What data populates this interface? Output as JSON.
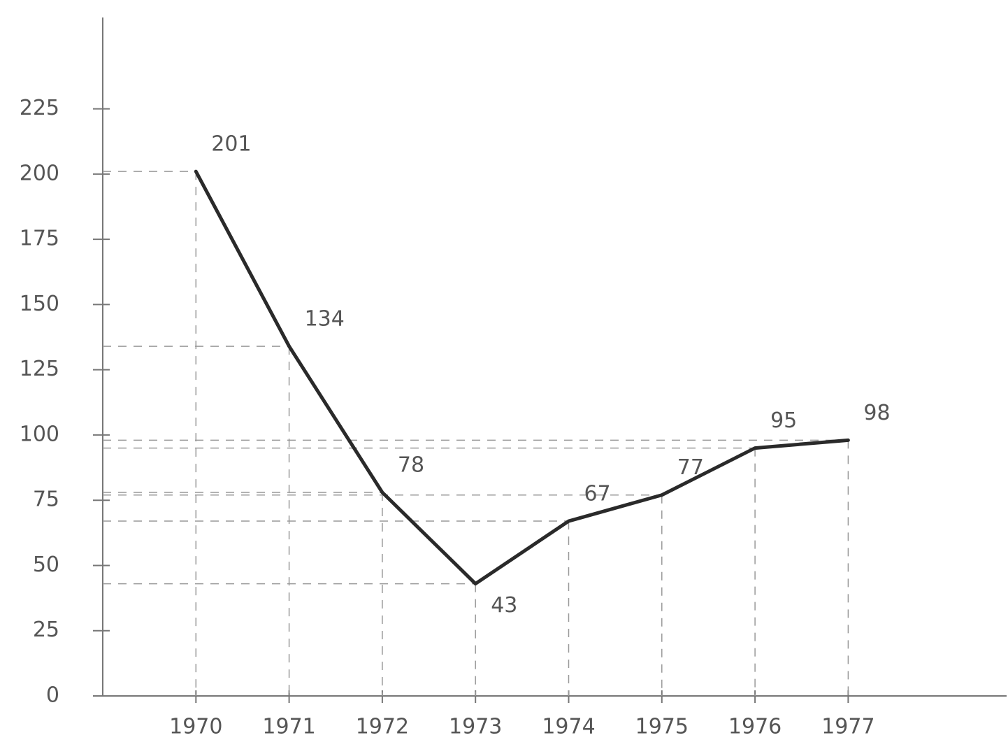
{
  "chart_data": {
    "type": "line",
    "x": [
      1970,
      1971,
      1972,
      1973,
      1974,
      1975,
      1976,
      1977
    ],
    "xlim": [
      1969,
      1978.7
    ],
    "xticks": [
      1970,
      1971,
      1972,
      1973,
      1974,
      1975,
      1976,
      1977
    ],
    "ylim": [
      0,
      260
    ],
    "yticks": [
      0,
      25,
      50,
      75,
      100,
      125,
      150,
      175,
      200,
      225
    ],
    "series": [
      {
        "color": "#2a2a2a",
        "values": [
          201,
          134,
          78,
          43,
          67,
          77,
          95,
          98
        ]
      }
    ]
  }
}
